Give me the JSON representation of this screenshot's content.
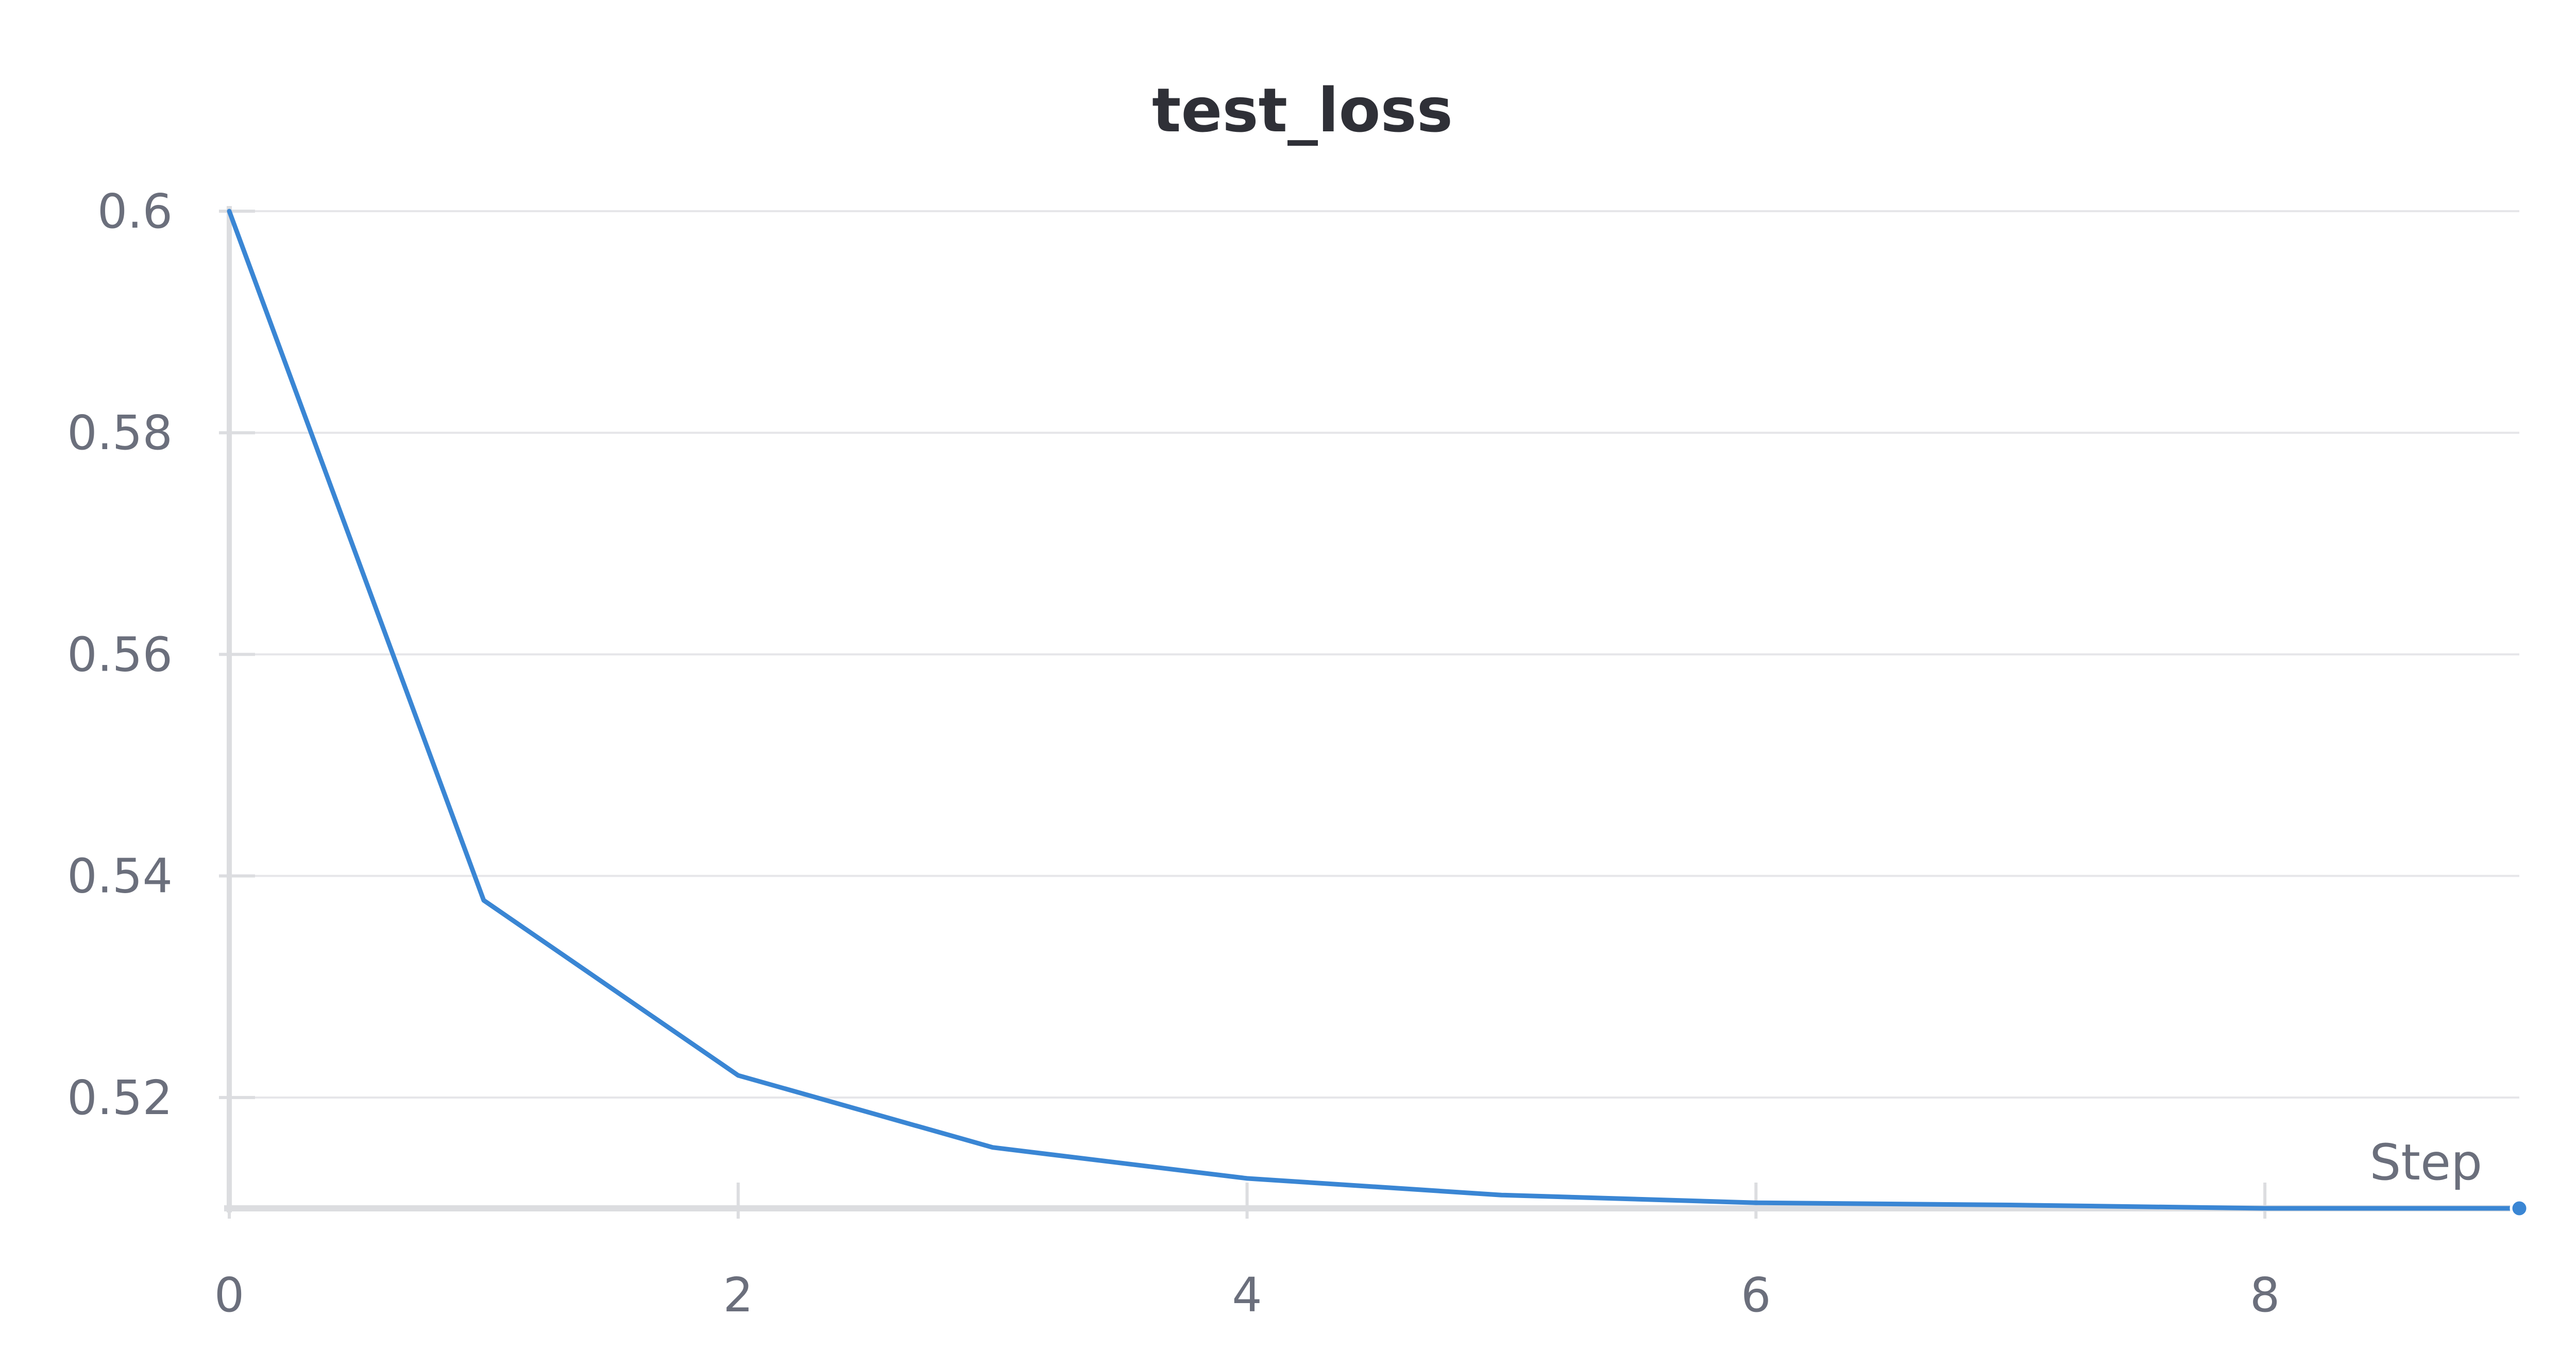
{
  "chart_data": {
    "type": "line",
    "title": "test_loss",
    "xlabel": "Step",
    "ylabel": "",
    "xlim": [
      0,
      9
    ],
    "ylim": [
      0.51,
      0.6
    ],
    "x_ticks": [
      "0",
      "2",
      "4",
      "6",
      "8"
    ],
    "y_ticks": [
      "0.6",
      "0.58",
      "0.56",
      "0.54",
      "0.52"
    ],
    "grid": true,
    "series": [
      {
        "x": [
          0,
          1,
          2,
          3,
          4,
          5,
          6,
          7,
          8,
          9
        ],
        "values": [
          0.6,
          0.5378,
          0.522,
          0.5155,
          0.5127,
          0.5112,
          0.5105,
          0.5103,
          0.51,
          0.51
        ],
        "color": "#3a86d4"
      }
    ]
  }
}
